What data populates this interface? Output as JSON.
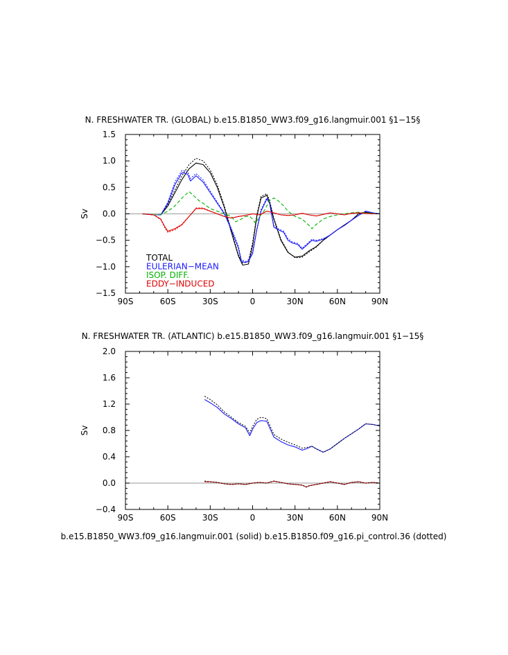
{
  "footer": "b.e15.B1850_WW3.f09_g16.langmuir.001 (solid) b.e15.B1850.f09_g16.pi_control.36 (dotted)",
  "colors": {
    "total": "#000000",
    "eulerian": "#1a1aff",
    "isop": "#00b300",
    "eddy": "#e00000",
    "zero_line": "#aaaaaa"
  },
  "chart_data": [
    {
      "type": "line",
      "title": "N. FRESHWATER TR. (GLOBAL) b.e15.B1850_WW3.f09_g16.langmuir.001 §1−15§",
      "ylabel": "Sv",
      "xlim": [
        -90,
        90
      ],
      "ylim": [
        -1.5,
        1.5
      ],
      "xticks": [
        -90,
        -60,
        -30,
        0,
        30,
        60,
        90
      ],
      "xticklabels": [
        "90S",
        "60S",
        "30S",
        "0",
        "30N",
        "60N",
        "90N"
      ],
      "yticks": [
        -1.5,
        -1.0,
        -0.5,
        0.0,
        0.5,
        1.0,
        1.5
      ],
      "yticklabels": [
        "−1.5",
        "−1.0",
        "−0.5",
        "0.0",
        "0.5",
        "1.0",
        "1.5"
      ],
      "legend": [
        "TOTAL",
        "EULERIAN−MEAN",
        "ISOP. DIFF.",
        "EDDY−INDUCED"
      ],
      "series": [
        {
          "name": "TOTAL",
          "style": "solid",
          "color": "total",
          "x": [
            -78,
            -70,
            -65,
            -60,
            -55,
            -50,
            -45,
            -40,
            -35,
            -30,
            -25,
            -20,
            -15,
            -10,
            -7,
            -3,
            0,
            3,
            6,
            10,
            12,
            15,
            20,
            25,
            30,
            35,
            40,
            45,
            50,
            60,
            70,
            75,
            80,
            90
          ],
          "y": [
            0,
            -0.02,
            -0.02,
            0.15,
            0.4,
            0.65,
            0.85,
            0.96,
            0.93,
            0.78,
            0.5,
            0.12,
            -0.35,
            -0.8,
            -0.97,
            -0.95,
            -0.6,
            -0.05,
            0.3,
            0.35,
            0.22,
            -0.1,
            -0.5,
            -0.73,
            -0.82,
            -0.8,
            -0.7,
            -0.62,
            -0.5,
            -0.3,
            -0.12,
            0.0,
            0.03,
            0
          ]
        },
        {
          "name": "TOTAL",
          "style": "dotted",
          "color": "total",
          "x": [
            -78,
            -70,
            -65,
            -60,
            -55,
            -50,
            -45,
            -40,
            -35,
            -30,
            -25,
            -20,
            -15,
            -10,
            -7,
            -3,
            0,
            3,
            6,
            10,
            12,
            15,
            20,
            25,
            30,
            35,
            40,
            45,
            50,
            60,
            70,
            75,
            80,
            90
          ],
          "y": [
            0,
            -0.02,
            -0.02,
            0.18,
            0.45,
            0.72,
            0.93,
            1.05,
            1.0,
            0.83,
            0.55,
            0.15,
            -0.32,
            -0.78,
            -0.93,
            -0.9,
            -0.55,
            -0.02,
            0.33,
            0.38,
            0.25,
            -0.08,
            -0.48,
            -0.72,
            -0.83,
            -0.82,
            -0.72,
            -0.63,
            -0.5,
            -0.3,
            -0.12,
            0.0,
            0.03,
            0
          ]
        },
        {
          "name": "EULERIAN−MEAN",
          "style": "solid",
          "color": "eulerian",
          "x": [
            -78,
            -70,
            -65,
            -60,
            -55,
            -50,
            -46,
            -44,
            -40,
            -35,
            -30,
            -25,
            -20,
            -15,
            -10,
            -8,
            -5,
            -3,
            0,
            3,
            6,
            10,
            12,
            15,
            18,
            22,
            25,
            28,
            32,
            35,
            38,
            42,
            45,
            50,
            55,
            60,
            65,
            70,
            75,
            80,
            85,
            90
          ],
          "y": [
            0,
            -0.02,
            -0.02,
            0.2,
            0.55,
            0.78,
            0.75,
            0.62,
            0.72,
            0.6,
            0.4,
            0.2,
            0.0,
            -0.3,
            -0.65,
            -0.9,
            -0.92,
            -0.9,
            -0.75,
            -0.3,
            0.05,
            0.28,
            0.2,
            -0.25,
            -0.3,
            -0.35,
            -0.5,
            -0.55,
            -0.58,
            -0.67,
            -0.6,
            -0.5,
            -0.52,
            -0.48,
            -0.4,
            -0.3,
            -0.22,
            -0.12,
            -0.03,
            0.05,
            0.02,
            0
          ]
        },
        {
          "name": "EULERIAN−MEAN",
          "style": "dotted",
          "color": "eulerian",
          "x": [
            -78,
            -70,
            -65,
            -60,
            -55,
            -50,
            -46,
            -44,
            -40,
            -35,
            -30,
            -25,
            -20,
            -15,
            -10,
            -8,
            -5,
            -3,
            0,
            3,
            6,
            10,
            12,
            15,
            18,
            22,
            25,
            28,
            32,
            35,
            38,
            42,
            45,
            50,
            55,
            60,
            65,
            70,
            75,
            80,
            85,
            90
          ],
          "y": [
            0,
            -0.02,
            -0.02,
            0.22,
            0.6,
            0.82,
            0.8,
            0.67,
            0.76,
            0.64,
            0.43,
            0.22,
            0.02,
            -0.28,
            -0.62,
            -0.87,
            -0.9,
            -0.87,
            -0.72,
            -0.28,
            0.08,
            0.3,
            0.22,
            -0.22,
            -0.28,
            -0.33,
            -0.47,
            -0.53,
            -0.56,
            -0.65,
            -0.58,
            -0.48,
            -0.5,
            -0.47,
            -0.4,
            -0.3,
            -0.22,
            -0.12,
            -0.03,
            0.05,
            0.02,
            0
          ]
        },
        {
          "name": "ISOP. DIFF.",
          "style": "dashed",
          "color": "isop",
          "x": [
            -78,
            -70,
            -65,
            -60,
            -55,
            -50,
            -45,
            -42,
            -38,
            -35,
            -30,
            -25,
            -20,
            -15,
            -12,
            -8,
            -5,
            -2,
            0,
            2,
            5,
            8,
            12,
            15,
            18,
            22,
            25,
            30,
            35,
            40,
            42,
            45,
            50,
            55,
            60,
            65,
            70,
            75,
            80,
            90
          ],
          "y": [
            0,
            -0.02,
            -0.01,
            0.05,
            0.15,
            0.3,
            0.42,
            0.35,
            0.25,
            0.2,
            0.1,
            0.05,
            0.0,
            -0.05,
            -0.15,
            -0.1,
            -0.05,
            -0.05,
            -0.1,
            -0.18,
            -0.05,
            0.05,
            0.25,
            0.3,
            0.25,
            0.15,
            0.05,
            -0.05,
            -0.1,
            -0.22,
            -0.28,
            -0.2,
            -0.1,
            -0.05,
            -0.02,
            0.0,
            0.02,
            0.03,
            0.02,
            0
          ]
        },
        {
          "name": "EDDY−INDUCED",
          "style": "solid",
          "color": "eddy",
          "x": [
            -78,
            -70,
            -65,
            -62,
            -60,
            -55,
            -50,
            -45,
            -40,
            -35,
            -30,
            -25,
            -20,
            -15,
            -10,
            -5,
            0,
            5,
            10,
            15,
            20,
            25,
            30,
            35,
            40,
            45,
            50,
            55,
            60,
            65,
            70,
            75,
            80,
            85,
            90
          ],
          "y": [
            0,
            -0.02,
            -0.1,
            -0.25,
            -0.33,
            -0.28,
            -0.2,
            -0.05,
            0.1,
            0.1,
            0.05,
            0.0,
            -0.05,
            -0.08,
            -0.05,
            -0.03,
            0.0,
            -0.02,
            0.05,
            0.02,
            -0.02,
            -0.03,
            -0.02,
            0.01,
            -0.02,
            -0.04,
            -0.01,
            0.02,
            0.0,
            -0.02,
            0.01,
            0.02,
            0.01,
            0.0,
            0
          ]
        },
        {
          "name": "EDDY−INDUCED",
          "style": "dotted",
          "color": "eddy",
          "x": [
            -78,
            -70,
            -65,
            -62,
            -60,
            -55,
            -50,
            -45,
            -40,
            -35,
            -30,
            -25,
            -20,
            -15,
            -10,
            -5,
            0,
            5,
            10,
            15,
            20,
            25,
            30,
            35,
            40,
            45,
            50,
            55,
            60,
            65,
            70,
            75,
            80,
            85,
            90
          ],
          "y": [
            0,
            -0.02,
            -0.11,
            -0.27,
            -0.35,
            -0.3,
            -0.21,
            -0.05,
            0.11,
            0.11,
            0.05,
            0.0,
            -0.05,
            -0.08,
            -0.05,
            -0.03,
            0.0,
            -0.02,
            0.05,
            0.02,
            -0.02,
            -0.03,
            -0.02,
            0.01,
            -0.02,
            -0.04,
            -0.01,
            0.02,
            0.0,
            -0.02,
            0.01,
            0.02,
            0.01,
            0.0,
            0
          ]
        }
      ]
    },
    {
      "type": "line",
      "title": "N. FRESHWATER TR. (ATLANTIC) b.e15.B1850_WW3.f09_g16.langmuir.001 §1−15§",
      "ylabel": "Sv",
      "xlim": [
        -90,
        90
      ],
      "ylim": [
        -0.4,
        2.0
      ],
      "xticks": [
        -90,
        -60,
        -30,
        0,
        30,
        60,
        90
      ],
      "xticklabels": [
        "90S",
        "60S",
        "30S",
        "0",
        "30N",
        "60N",
        "90N"
      ],
      "yticks": [
        -0.4,
        0.0,
        0.4,
        0.8,
        1.2,
        1.6,
        2.0
      ],
      "yticklabels": [
        "−0.4",
        "0.0",
        "0.4",
        "0.8",
        "1.2",
        "1.6",
        "2.0"
      ],
      "series": [
        {
          "name": "EULERIAN−MEAN",
          "style": "solid",
          "color": "eulerian",
          "x": [
            -34,
            -30,
            -25,
            -20,
            -15,
            -10,
            -5,
            -2,
            0,
            3,
            6,
            10,
            15,
            20,
            25,
            30,
            35,
            38,
            42,
            45,
            50,
            55,
            60,
            65,
            70,
            75,
            80,
            85,
            90
          ],
          "y": [
            1.27,
            1.22,
            1.15,
            1.05,
            0.98,
            0.9,
            0.84,
            0.72,
            0.82,
            0.92,
            0.95,
            0.94,
            0.7,
            0.63,
            0.58,
            0.55,
            0.5,
            0.52,
            0.56,
            0.52,
            0.47,
            0.52,
            0.6,
            0.68,
            0.75,
            0.82,
            0.9,
            0.89,
            0.87
          ]
        },
        {
          "name": "EULERIAN−MEAN",
          "style": "dotted",
          "color": "total",
          "x": [
            -34,
            -30,
            -25,
            -20,
            -15,
            -10,
            -5,
            -2,
            0,
            3,
            6,
            10,
            15,
            20,
            25,
            30,
            35,
            38,
            42,
            45,
            50,
            55,
            60,
            65,
            70,
            75,
            80,
            85,
            90
          ],
          "y": [
            1.32,
            1.27,
            1.19,
            1.08,
            1.0,
            0.92,
            0.86,
            0.76,
            0.86,
            0.97,
            1.0,
            0.98,
            0.74,
            0.67,
            0.62,
            0.58,
            0.53,
            0.54,
            0.56,
            0.52,
            0.47,
            0.52,
            0.6,
            0.68,
            0.75,
            0.82,
            0.9,
            0.89,
            0.87
          ]
        },
        {
          "name": "EDDY−INDUCED",
          "style": "solid",
          "color": "eddy",
          "x": [
            -34,
            -30,
            -25,
            -20,
            -15,
            -10,
            -5,
            0,
            5,
            10,
            15,
            20,
            25,
            30,
            35,
            38,
            40,
            45,
            50,
            55,
            60,
            65,
            70,
            75,
            80,
            85,
            90
          ],
          "y": [
            0.02,
            0.02,
            0.01,
            -0.01,
            -0.02,
            -0.01,
            -0.02,
            0.0,
            0.01,
            0.0,
            0.03,
            0.01,
            -0.01,
            -0.02,
            -0.03,
            -0.06,
            -0.04,
            -0.02,
            0.0,
            0.02,
            0.0,
            -0.02,
            0.01,
            0.02,
            0.0,
            0.01,
            0.0
          ]
        },
        {
          "name": "EDDY−INDUCED",
          "style": "dotted",
          "color": "total",
          "x": [
            -34,
            -30,
            -25,
            -20,
            -15,
            -10,
            -5,
            0,
            5,
            10,
            15,
            20,
            25,
            30,
            35,
            38,
            40,
            45,
            50,
            55,
            60,
            65,
            70,
            75,
            80,
            85,
            90
          ],
          "y": [
            0.03,
            0.02,
            0.01,
            -0.01,
            -0.02,
            -0.01,
            -0.02,
            0.0,
            0.01,
            0.0,
            0.03,
            0.01,
            -0.01,
            -0.02,
            -0.03,
            -0.06,
            -0.04,
            -0.02,
            0.0,
            0.02,
            0.0,
            -0.02,
            0.01,
            0.02,
            0.0,
            0.01,
            0.0
          ]
        }
      ]
    }
  ]
}
